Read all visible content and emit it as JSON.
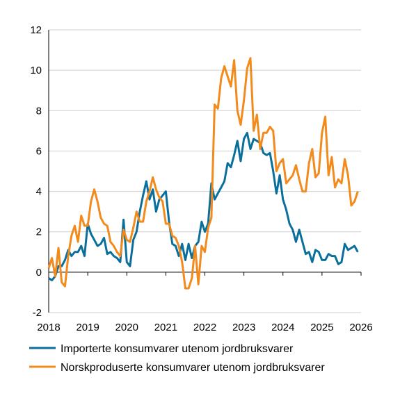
{
  "chart_data": {
    "type": "line",
    "x": [
      2018,
      2018.083,
      2018.167,
      2018.25,
      2018.333,
      2018.417,
      2018.5,
      2018.583,
      2018.667,
      2018.75,
      2018.833,
      2018.917,
      2019,
      2019.083,
      2019.167,
      2019.25,
      2019.333,
      2019.417,
      2019.5,
      2019.583,
      2019.667,
      2019.75,
      2019.833,
      2019.917,
      2020,
      2020.083,
      2020.167,
      2020.25,
      2020.333,
      2020.417,
      2020.5,
      2020.583,
      2020.667,
      2020.75,
      2020.833,
      2020.917,
      2021,
      2021.083,
      2021.167,
      2021.25,
      2021.333,
      2021.417,
      2021.5,
      2021.583,
      2021.667,
      2021.75,
      2021.833,
      2021.917,
      2022,
      2022.083,
      2022.167,
      2022.25,
      2022.333,
      2022.417,
      2022.5,
      2022.583,
      2022.667,
      2022.75,
      2022.833,
      2022.917,
      2023,
      2023.083,
      2023.167,
      2023.25,
      2023.333,
      2023.417,
      2023.5,
      2023.583,
      2023.667,
      2023.75,
      2023.833,
      2023.917,
      2024,
      2024.083,
      2024.167,
      2024.25,
      2024.333,
      2024.417,
      2024.5,
      2024.583,
      2024.667,
      2024.75,
      2024.833,
      2024.917,
      2025,
      2025.083,
      2025.167,
      2025.25,
      2025.333,
      2025.417,
      2025.5,
      2025.583,
      2025.667,
      2025.75,
      2025.833,
      2025.917
    ],
    "series": [
      {
        "name": "Importerte konsumvarer utenom jordbruksvarer",
        "color": "#0b6f9c",
        "values": [
          -0.3,
          -0.4,
          -0.2,
          0.3,
          0.3,
          0.6,
          1.1,
          0.8,
          1.0,
          1.0,
          1.3,
          0.8,
          2.4,
          1.9,
          1.6,
          1.3,
          1.4,
          1.7,
          0.9,
          1.0,
          0.8,
          0.7,
          0.5,
          2.6,
          0.5,
          0.3,
          1.6,
          2.0,
          3.0,
          3.8,
          4.5,
          3.6,
          4.1,
          3.0,
          3.6,
          3.8,
          4.0,
          2.5,
          1.4,
          1.3,
          0.8,
          1.4,
          0.6,
          1.4,
          0.7,
          1.3,
          1.5,
          2.5,
          2.0,
          2.4,
          4.4,
          3.6,
          3.9,
          4.2,
          4.5,
          5.4,
          5.2,
          5.8,
          6.5,
          5.5,
          6.6,
          6.9,
          6.1,
          6.6,
          6.5,
          6.4,
          5.9,
          5.8,
          5.9,
          5.0,
          3.9,
          4.8,
          3.6,
          3.1,
          2.4,
          2.1,
          1.5,
          2.1,
          1.5,
          0.9,
          1.0,
          0.5,
          1.1,
          1.0,
          0.6,
          0.6,
          0.9,
          0.8,
          0.8,
          0.4,
          0.5,
          1.4,
          1.1,
          1.2,
          1.3,
          1.0
        ]
      },
      {
        "name": "Norskproduserte konsumvarer utenom jordbruksvarer",
        "color": "#f28a1c",
        "values": [
          0.2,
          0.7,
          -0.2,
          1.2,
          -0.5,
          -0.7,
          0.8,
          1.8,
          2.3,
          1.5,
          2.8,
          2.3,
          2.3,
          3.5,
          4.1,
          3.5,
          2.7,
          2.4,
          2.3,
          1.5,
          1.3,
          1.0,
          0.8,
          2.1,
          1.6,
          1.5,
          2.2,
          3.0,
          2.5,
          2.5,
          3.5,
          4.0,
          4.7,
          4.1,
          3.7,
          3.5,
          2.4,
          2.4,
          1.8,
          1.7,
          1.3,
          0.5,
          -0.8,
          -0.8,
          -0.3,
          1.3,
          -0.6,
          1.3,
          1.0,
          2.2,
          2.7,
          8.3,
          8.1,
          9.6,
          10.2,
          9.7,
          9.2,
          10.5,
          8.0,
          7.3,
          8.5,
          10.1,
          10.6,
          7.0,
          7.8,
          6.1,
          6.9,
          6.9,
          7.2,
          7.0,
          5.0,
          5.4,
          5.6,
          4.4,
          4.6,
          4.8,
          5.3,
          4.6,
          4.0,
          4.0,
          5.4,
          6.1,
          4.7,
          4.9,
          6.9,
          7.7,
          4.8,
          5.7,
          4.2,
          4.6,
          4.4,
          5.6,
          4.8,
          3.3,
          3.5,
          4.0
        ]
      }
    ],
    "xlim": [
      2018,
      2026
    ],
    "xticks": [
      2018,
      2019,
      2020,
      2021,
      2022,
      2023,
      2024,
      2025,
      2026
    ],
    "ylim": [
      -2,
      12
    ],
    "yticks": [
      -2,
      0,
      2,
      4,
      6,
      8,
      10,
      12
    ],
    "grid": true
  }
}
